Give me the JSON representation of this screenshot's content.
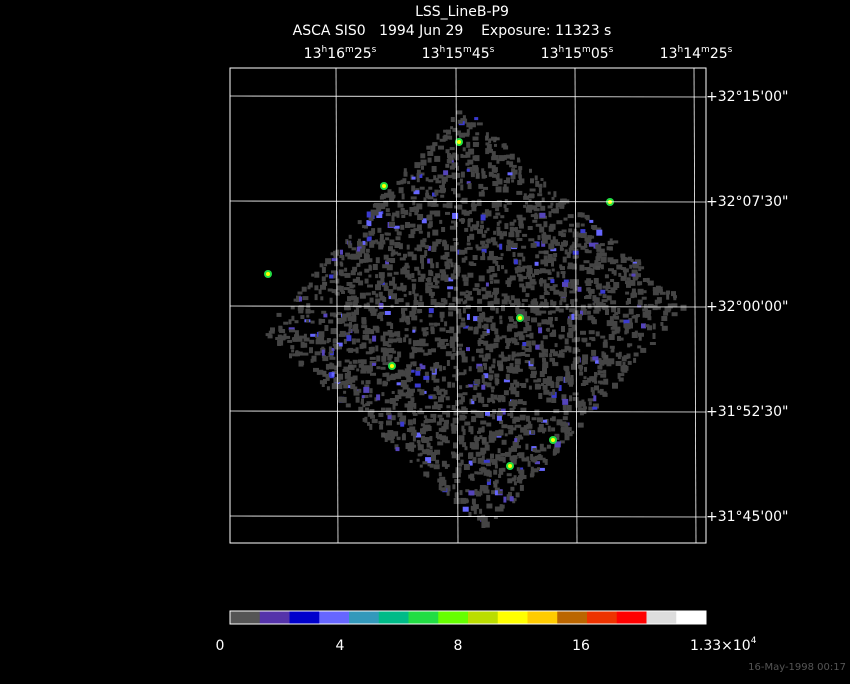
{
  "header": {
    "title": "LSS_LineB-P9",
    "subtitle": "ASCA SIS0   1994 Jun 29    Exposure: 11323 s"
  },
  "ra_labels": [
    [
      "13",
      "h",
      "16",
      "m",
      "25",
      "s"
    ],
    [
      "13",
      "h",
      "15",
      "m",
      "45",
      "s"
    ],
    [
      "13",
      "h",
      "15",
      "m",
      "05",
      "s"
    ],
    [
      "13",
      "h",
      "14",
      "m",
      "25",
      "s"
    ]
  ],
  "dec_labels": [
    "+32°15'00\"",
    "+32°07'30\"",
    "+32°00'00\"",
    "+31°52'30\"",
    "+31°45'00\""
  ],
  "colorbar": {
    "colors": [
      "#555555",
      "#5533aa",
      "#0000cc",
      "#6666ff",
      "#3399bb",
      "#00bb88",
      "#22dd44",
      "#66ff00",
      "#bbdd00",
      "#ffff00",
      "#ffcc00",
      "#bb6600",
      "#ee3300",
      "#ff0000",
      "#dddddd",
      "#ffffff"
    ],
    "labels": [
      "0",
      "4",
      "8",
      "16"
    ],
    "max_label": [
      "1.33×10",
      "4"
    ]
  },
  "timestamp": "16-May-1998 00:17"
}
